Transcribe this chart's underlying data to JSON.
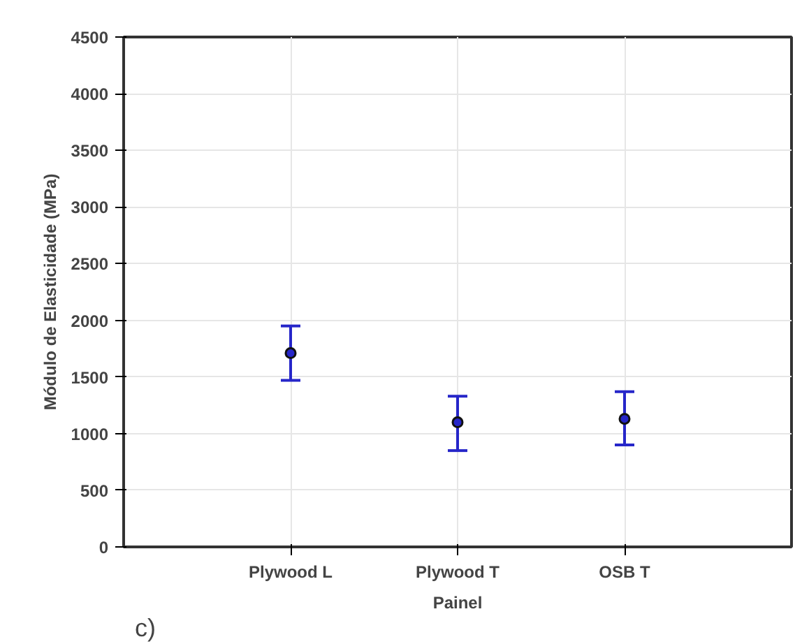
{
  "chart_data": {
    "type": "scatter",
    "xlabel": "Painel",
    "ylabel": "Módulo de Elasticidade (MPa)",
    "categories": [
      "Plywood L",
      "Plywood T",
      "OSB T"
    ],
    "series": [
      {
        "color": "#2626c9",
        "values": [
          1710,
          1100,
          1130
        ],
        "errors": [
          [
            1470,
            1950
          ],
          [
            850,
            1330
          ],
          [
            900,
            1370
          ]
        ]
      }
    ],
    "ylim": [
      0,
      4500
    ],
    "yticks": [
      0,
      500,
      1000,
      1500,
      2000,
      2500,
      3000,
      3500,
      4000,
      4500
    ],
    "grid": true,
    "marker": "circle",
    "annotations": [
      "c)"
    ]
  }
}
